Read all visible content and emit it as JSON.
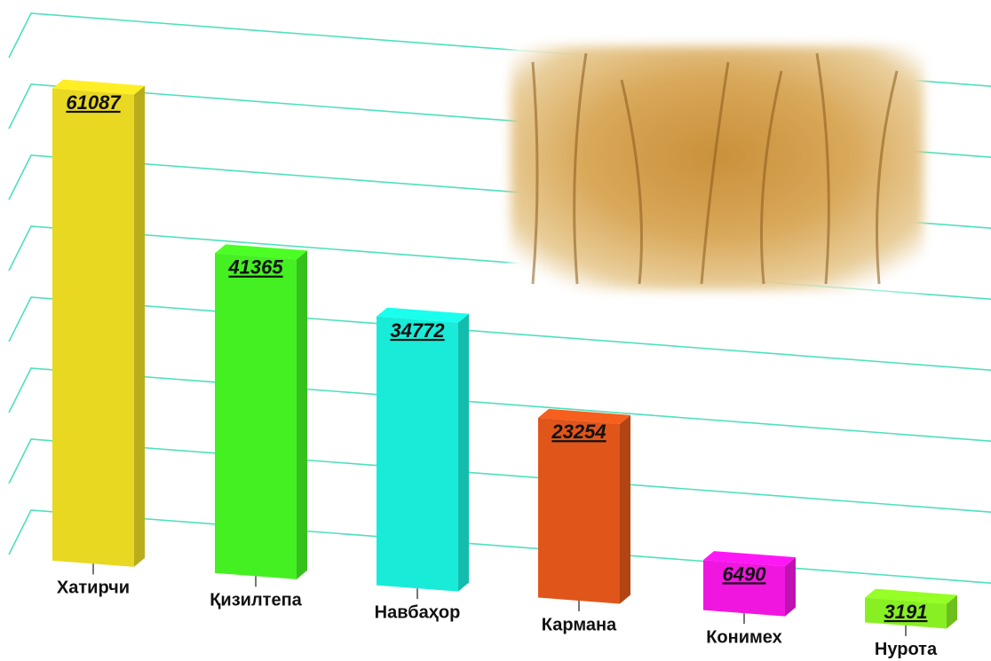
{
  "chart_data": {
    "type": "bar3d",
    "categories": [
      "Хатирчи",
      "Қизилтепа",
      "Навбаҳор",
      "Кармана",
      "Конимех",
      "Нурота"
    ],
    "values": [
      61087,
      41365,
      34772,
      23254,
      6490,
      3191
    ],
    "colors": [
      "#e8d822",
      "#44f022",
      "#18ecd8",
      "#e0561a",
      "#f016e0",
      "#88f022"
    ],
    "ylim": [
      0,
      70000
    ],
    "grid": true
  }
}
